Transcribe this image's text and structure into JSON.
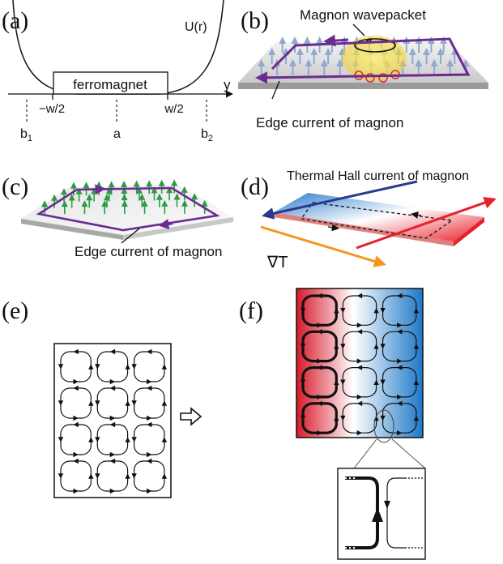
{
  "panels": {
    "a": {
      "label": "(a)",
      "potential_label": "U(r)",
      "axis_label": "y",
      "box_label": "ferromagnet",
      "tick_left": "−w/2",
      "tick_right": "w/2",
      "point_left": "b",
      "point_left_sub": "1",
      "point_mid": "a",
      "point_right": "b",
      "point_right_sub": "2"
    },
    "b": {
      "label": "(b)",
      "wavepacket_label": "Magnon wavepacket",
      "edge_label": "Edge current of magnon"
    },
    "c": {
      "label": "(c)",
      "edge_label": "Edge current of magnon"
    },
    "d": {
      "label": "(d)",
      "hall_label": "Thermal Hall current of magnon",
      "gradient_label": "∇T"
    },
    "e": {
      "label": "(e)"
    },
    "f": {
      "label": "(f)"
    }
  },
  "colors": {
    "magnon_path": "#6a2c91",
    "hall_current": "#2b3990",
    "hot": "#e8202a",
    "cold": "#2a7bc9",
    "gradient_arrow": "#f7941d",
    "spin_green": "#2e9a44",
    "spin_blue": "#8fa9cf",
    "wavepacket": "#f9e24a"
  }
}
